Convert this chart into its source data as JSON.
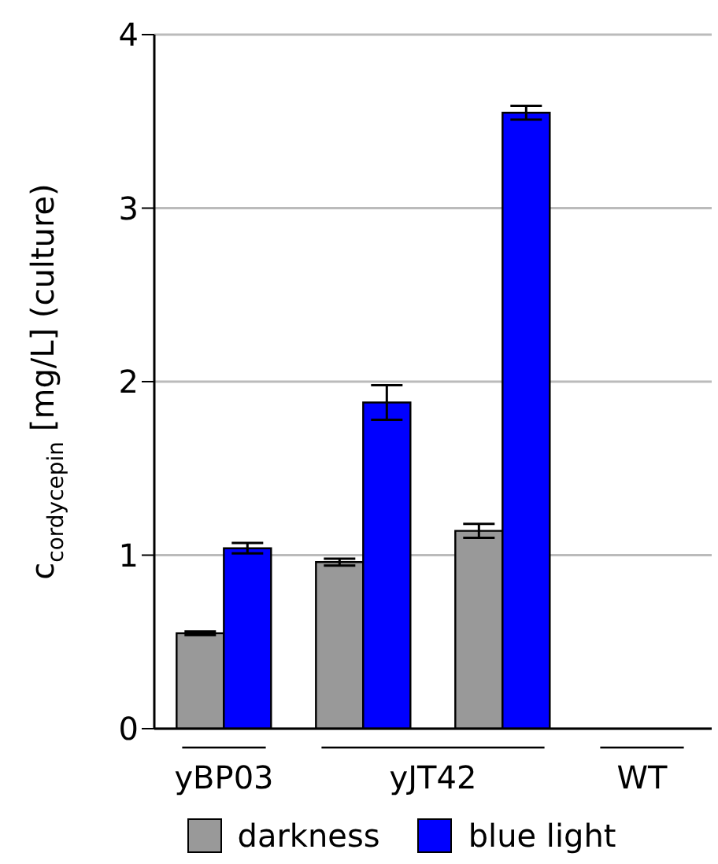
{
  "chart_data": {
    "type": "bar",
    "ylabel": "c$_{cordycepin}$ [mg/L] (culture)",
    "categories": [
      "yBP03",
      null,
      null,
      "WT"
    ],
    "annotations": [
      "yJT42"
    ],
    "series": [
      {
        "name": "darkness",
        "color": "#999999",
        "values": [
          0.55,
          0.96,
          1.14,
          0
        ],
        "errors": [
          0.01,
          0.02,
          0.04,
          null
        ]
      },
      {
        "name": "blue light",
        "color": "#0000ff",
        "values": [
          1.04,
          1.88,
          3.55,
          0
        ],
        "errors": [
          0.03,
          0.1,
          0.04,
          null
        ]
      }
    ],
    "ylim": [
      0,
      4
    ],
    "yticks": [
      0,
      1,
      2,
      3,
      4
    ],
    "grid": "y",
    "legend": "bottom"
  }
}
